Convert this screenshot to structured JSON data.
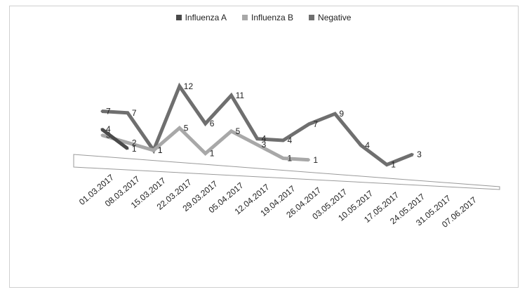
{
  "chart_data": {
    "type": "line",
    "categories": [
      "01.03.2017",
      "08.03.2017",
      "15.03.2017",
      "22.03.2017",
      "29.03.2017",
      "05.04.2017",
      "12.04.2017",
      "19.04.2017",
      "26.04.2017",
      "03.05.2017",
      "10.05.2017",
      "17.05.2017",
      "24.05.2017",
      "31.05.2017",
      "07.06.2017"
    ],
    "series": [
      {
        "name": "Influenza A",
        "color": "#4a4a4a",
        "values": [
          4,
          1,
          null,
          null,
          null,
          null,
          null,
          null,
          null,
          null,
          null,
          null,
          null,
          null,
          null
        ]
      },
      {
        "name": "Influenza B",
        "color": "#a8a8a8",
        "values": [
          3,
          2,
          1,
          5,
          1,
          5,
          3,
          1,
          1,
          null,
          null,
          null,
          null,
          null,
          null
        ]
      },
      {
        "name": "Negative",
        "color": "#6f6f6f",
        "values": [
          7,
          7,
          1,
          12,
          6,
          11,
          4,
          4,
          7,
          9,
          4,
          1,
          3,
          null,
          null
        ]
      }
    ],
    "title": "",
    "xlabel": "",
    "ylabel": "",
    "legend_position": "top",
    "grid": false
  }
}
